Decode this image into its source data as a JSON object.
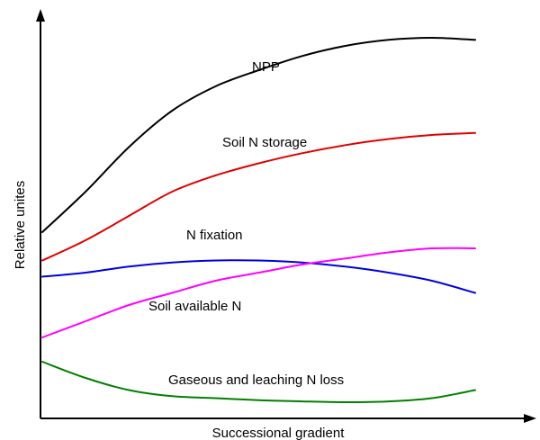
{
  "chart_data": {
    "type": "line",
    "title": "",
    "xlabel": "Successional gradient",
    "ylabel": "Relative unites",
    "xlim": [
      0,
      1
    ],
    "ylim": [
      0,
      1
    ],
    "axis_ticks": "none",
    "axes_arrows": true,
    "grid": false,
    "legend": "none",
    "series": [
      {
        "name": "NPP",
        "color": "#000000",
        "x": [
          0,
          0.1,
          0.2,
          0.3,
          0.4,
          0.5,
          0.6,
          0.7,
          0.8,
          0.9,
          1.0
        ],
        "y": [
          0.46,
          0.56,
          0.67,
          0.76,
          0.82,
          0.86,
          0.895,
          0.92,
          0.935,
          0.94,
          0.935
        ]
      },
      {
        "name": "Soil N storage",
        "color": "#e00000",
        "x": [
          0,
          0.1,
          0.2,
          0.3,
          0.4,
          0.5,
          0.6,
          0.7,
          0.8,
          0.9,
          1.0
        ],
        "y": [
          0.39,
          0.44,
          0.5,
          0.56,
          0.6,
          0.63,
          0.655,
          0.675,
          0.69,
          0.7,
          0.705
        ]
      },
      {
        "name": "N fixation",
        "color": "#0000e0",
        "x": [
          0,
          0.1,
          0.2,
          0.3,
          0.4,
          0.5,
          0.6,
          0.7,
          0.8,
          0.9,
          1.0
        ],
        "y": [
          0.35,
          0.36,
          0.375,
          0.385,
          0.39,
          0.39,
          0.385,
          0.375,
          0.36,
          0.34,
          0.31
        ]
      },
      {
        "name": "Soil available N",
        "color": "#ff00ff",
        "x": [
          0,
          0.1,
          0.2,
          0.3,
          0.4,
          0.5,
          0.6,
          0.7,
          0.8,
          0.9,
          1.0
        ],
        "y": [
          0.2,
          0.24,
          0.28,
          0.31,
          0.34,
          0.36,
          0.38,
          0.395,
          0.41,
          0.42,
          0.42
        ]
      },
      {
        "name": "Gaseous and leaching N loss",
        "color": "#008000",
        "x": [
          0,
          0.1,
          0.2,
          0.3,
          0.4,
          0.5,
          0.6,
          0.7,
          0.8,
          0.9,
          1.0
        ],
        "y": [
          0.14,
          0.1,
          0.07,
          0.055,
          0.05,
          0.045,
          0.042,
          0.04,
          0.042,
          0.05,
          0.07
        ]
      }
    ]
  }
}
